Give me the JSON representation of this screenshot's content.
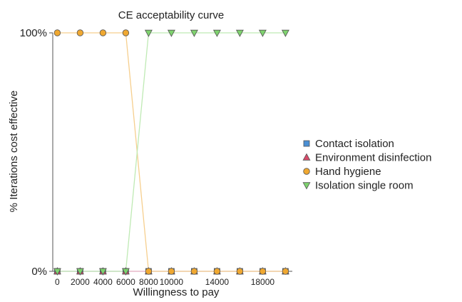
{
  "chart_data": {
    "type": "line",
    "title": "CE acceptability curve",
    "xlabel": "Willingness to pay",
    "ylabel": "% Iterations cost effective",
    "x": [
      0,
      2000,
      4000,
      6000,
      8000,
      10000,
      12000,
      14000,
      16000,
      18000,
      20000
    ],
    "x_tick_labels": [
      "0",
      "2000",
      "4000",
      "6000",
      "8000",
      "10000",
      "14000",
      "18000"
    ],
    "x_tick_values": [
      0,
      2000,
      4000,
      6000,
      8000,
      10000,
      14000,
      18000
    ],
    "y_tick_labels": [
      "0%",
      "100%"
    ],
    "y_tick_values": [
      0,
      1
    ],
    "xlim": [
      -400,
      20600
    ],
    "ylim": [
      0,
      1
    ],
    "legend_position": "right",
    "grid": false,
    "series": [
      {
        "name": "Contact isolation",
        "marker": "square",
        "color": "#4a8fd4",
        "line_color": "#a9c8ea",
        "values": [
          0,
          0,
          0,
          0,
          0,
          0,
          0,
          0,
          0,
          0,
          0
        ]
      },
      {
        "name": "Environment disinfection",
        "marker": "triangle-up",
        "color": "#d94a6a",
        "line_color": "#f0b4c2",
        "values": [
          0,
          0,
          0,
          0,
          0,
          0,
          0,
          0,
          0,
          0,
          0
        ]
      },
      {
        "name": "Hand hygiene",
        "marker": "circle",
        "color": "#f0a830",
        "line_color": "#f6cf8e",
        "values": [
          1,
          1,
          1,
          1,
          0,
          0,
          0,
          0,
          0,
          0,
          0
        ]
      },
      {
        "name": "Isolation single room",
        "marker": "triangle-down",
        "color": "#7ed36e",
        "line_color": "#bfeab4",
        "values": [
          0,
          0,
          0,
          0,
          1,
          1,
          1,
          1,
          1,
          1,
          1
        ]
      }
    ]
  }
}
